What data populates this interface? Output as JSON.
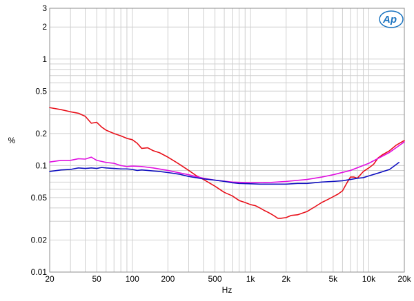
{
  "chart_data": {
    "type": "line",
    "title": "",
    "xlabel": "Hz",
    "ylabel": "%",
    "x_scale": "log",
    "y_scale": "log",
    "xlim": [
      20,
      20000
    ],
    "ylim": [
      0.01,
      3
    ],
    "grid": true,
    "legend": "none",
    "x_tick_labels": [
      {
        "v": 20,
        "t": "20"
      },
      {
        "v": 50,
        "t": "50"
      },
      {
        "v": 100,
        "t": "100"
      },
      {
        "v": 200,
        "t": "200"
      },
      {
        "v": 500,
        "t": "500"
      },
      {
        "v": 1000,
        "t": "1k"
      },
      {
        "v": 2000,
        "t": "2k"
      },
      {
        "v": 5000,
        "t": "5k"
      },
      {
        "v": 10000,
        "t": "10k"
      },
      {
        "v": 20000,
        "t": "20k"
      }
    ],
    "y_tick_labels": [
      {
        "v": 3,
        "t": "3"
      },
      {
        "v": 2,
        "t": "2"
      },
      {
        "v": 1,
        "t": "1"
      },
      {
        "v": 0.5,
        "t": "0.5"
      },
      {
        "v": 0.2,
        "t": "0.2"
      },
      {
        "v": 0.1,
        "t": "0.1"
      },
      {
        "v": 0.05,
        "t": "0.05"
      },
      {
        "v": 0.02,
        "t": "0.02"
      },
      {
        "v": 0.01,
        "t": "0.01"
      }
    ],
    "series": [
      {
        "color": "#e8101a",
        "x": [
          20,
          25,
          30,
          35,
          40,
          45,
          50,
          55,
          60,
          70,
          80,
          90,
          100,
          110,
          120,
          135,
          150,
          170,
          200,
          250,
          300,
          350,
          400,
          500,
          600,
          700,
          800,
          900,
          1000,
          1100,
          1200,
          1300,
          1400,
          1500,
          1600,
          1700,
          1800,
          2000,
          2200,
          2500,
          3000,
          3500,
          4000,
          4500,
          5000,
          5500,
          6000,
          6500,
          7000,
          7500,
          8000,
          9000,
          10000,
          11000,
          12000,
          13000,
          15000,
          17000,
          20000
        ],
        "y": [
          0.35,
          0.335,
          0.32,
          0.31,
          0.29,
          0.25,
          0.255,
          0.23,
          0.215,
          0.2,
          0.19,
          0.18,
          0.175,
          0.162,
          0.145,
          0.147,
          0.138,
          0.132,
          0.12,
          0.103,
          0.09,
          0.08,
          0.074,
          0.064,
          0.056,
          0.052,
          0.047,
          0.045,
          0.043,
          0.042,
          0.04,
          0.038,
          0.0365,
          0.035,
          0.0335,
          0.032,
          0.032,
          0.0325,
          0.034,
          0.0345,
          0.037,
          0.041,
          0.045,
          0.048,
          0.051,
          0.054,
          0.058,
          0.068,
          0.078,
          0.078,
          0.076,
          0.088,
          0.095,
          0.103,
          0.118,
          0.126,
          0.138,
          0.155,
          0.172
        ]
      },
      {
        "color": "#e010e0",
        "x": [
          20,
          25,
          30,
          35,
          40,
          45,
          50,
          60,
          70,
          80,
          90,
          100,
          120,
          150,
          200,
          300,
          400,
          500,
          700,
          1000,
          1500,
          2000,
          3000,
          4000,
          5000,
          7000,
          10000,
          15000,
          20000
        ],
        "y": [
          0.108,
          0.112,
          0.112,
          0.116,
          0.115,
          0.12,
          0.112,
          0.107,
          0.105,
          0.1,
          0.098,
          0.099,
          0.098,
          0.095,
          0.09,
          0.082,
          0.076,
          0.073,
          0.07,
          0.069,
          0.0695,
          0.071,
          0.074,
          0.078,
          0.082,
          0.09,
          0.105,
          0.133,
          0.167
        ]
      },
      {
        "color": "#1010c0",
        "x": [
          20,
          25,
          30,
          35,
          40,
          45,
          50,
          55,
          60,
          70,
          80,
          90,
          100,
          110,
          120,
          135,
          150,
          170,
          200,
          250,
          300,
          400,
          500,
          600,
          700,
          800,
          1000,
          1200,
          1500,
          2000,
          2500,
          3000,
          4000,
          5000,
          6000,
          7000,
          8000,
          9000,
          10000,
          12000,
          15000,
          18000
        ],
        "y": [
          0.088,
          0.091,
          0.092,
          0.095,
          0.094,
          0.095,
          0.094,
          0.096,
          0.095,
          0.094,
          0.093,
          0.093,
          0.092,
          0.09,
          0.091,
          0.09,
          0.089,
          0.088,
          0.086,
          0.083,
          0.079,
          0.075,
          0.073,
          0.071,
          0.069,
          0.068,
          0.0675,
          0.067,
          0.067,
          0.067,
          0.068,
          0.068,
          0.07,
          0.071,
          0.072,
          0.074,
          0.076,
          0.077,
          0.08,
          0.085,
          0.092,
          0.107
        ]
      }
    ]
  },
  "labels": {
    "xlabel": "Hz",
    "ylabel": "%",
    "logo": "AP"
  }
}
